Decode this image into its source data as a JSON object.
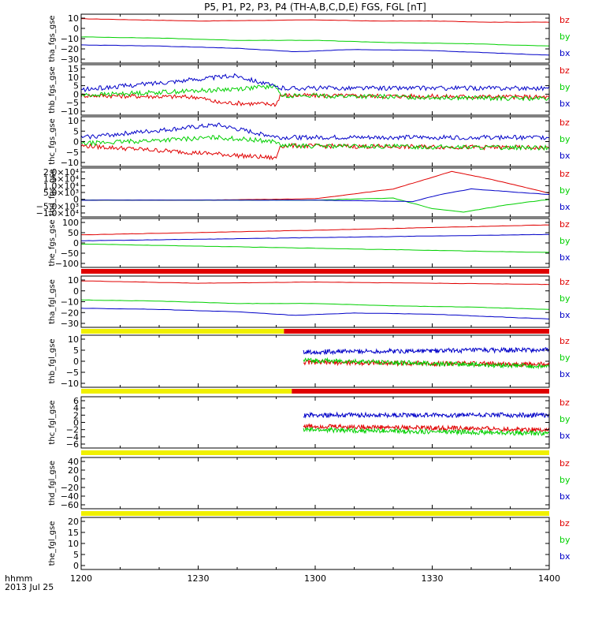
{
  "title": "P5, P1, P2, P3, P4 (TH-A,B,C,D,E) FGS, FGL [nT]",
  "time_axis": {
    "ticks": [
      "1200",
      "1230",
      "1300",
      "1330",
      "1400"
    ],
    "label_line1": "hhmm",
    "label_line2": "2013 Jul 25"
  },
  "legend": [
    "bz",
    "by",
    "bx"
  ],
  "colors": {
    "bz": "#e00000",
    "by": "#00d000",
    "bx": "#0000c8",
    "bar_yellow": "#f0f000",
    "bar_red": "#e00000"
  },
  "chart_data": [
    {
      "type": "line",
      "ylabel": "tha_fgs_gse",
      "x_range_hhmm": [
        "12:00",
        "14:00"
      ],
      "ylim": [
        -31,
        12
      ],
      "yticks": [
        "10",
        "0",
        "−10",
        "−20",
        "−30"
      ],
      "series": [
        {
          "name": "bz",
          "x": [
            0,
            30,
            60,
            75,
            90,
            105,
            120
          ],
          "values": [
            8,
            6,
            7,
            6,
            6,
            5,
            5
          ]
        },
        {
          "name": "by",
          "x": [
            0,
            20,
            40,
            60,
            80,
            100,
            120
          ],
          "values": [
            -8,
            -9,
            -11,
            -11,
            -13,
            -14,
            -16
          ]
        },
        {
          "name": "bx",
          "x": [
            0,
            20,
            40,
            55,
            70,
            90,
            120
          ],
          "values": [
            -15,
            -16,
            -18,
            -21,
            -19,
            -20,
            -24
          ]
        }
      ]
    },
    {
      "type": "line",
      "ylabel": "thb_fgs_gse",
      "ylim": [
        -12,
        16
      ],
      "yticks": [
        "15",
        "10",
        "5",
        "0",
        "−5",
        "−10"
      ],
      "series": [
        {
          "name": "bz",
          "x": [
            0,
            30,
            35,
            50,
            51,
            120
          ],
          "values": [
            -1,
            -2,
            -5,
            -6,
            -1,
            -2
          ]
        },
        {
          "name": "by",
          "x": [
            0,
            35,
            50,
            51,
            120
          ],
          "values": [
            -1,
            2,
            4,
            -1,
            -3
          ]
        },
        {
          "name": "bx",
          "x": [
            0,
            35,
            40,
            51,
            120
          ],
          "values": [
            2,
            9,
            10,
            3,
            3
          ]
        }
      ]
    },
    {
      "type": "line",
      "ylabel": "thc_fgs_gse",
      "ylim": [
        -12,
        12
      ],
      "yticks": [
        "10",
        "5",
        "0",
        "−5",
        "−10"
      ],
      "series": [
        {
          "name": "bz",
          "x": [
            0,
            35,
            50,
            51,
            120
          ],
          "values": [
            -2,
            -6,
            -8,
            -2,
            -3
          ]
        },
        {
          "name": "by",
          "x": [
            0,
            35,
            50,
            51,
            120
          ],
          "values": [
            -1,
            2,
            0,
            -2,
            -3
          ]
        },
        {
          "name": "bx",
          "x": [
            0,
            35,
            40,
            51,
            120
          ],
          "values": [
            2,
            8,
            6,
            2,
            2
          ]
        }
      ]
    },
    {
      "type": "line",
      "ylabel": "thd_fgs_gse",
      "ylim": [
        -12000,
        23000
      ],
      "yticks": [
        "2.0×10⁴",
        "1.5×10⁴",
        "1.0×10⁴",
        "5.0×10³",
        "0",
        "−5.0×10³",
        "−1.0×10⁴"
      ],
      "series": [
        {
          "name": "bz",
          "x": [
            0,
            30,
            60,
            80,
            95,
            105,
            120
          ],
          "values": [
            0,
            0,
            1000,
            8000,
            20500,
            15000,
            5000
          ]
        },
        {
          "name": "by",
          "x": [
            0,
            60,
            80,
            90,
            98,
            110,
            120
          ],
          "values": [
            0,
            0,
            1500,
            -6000,
            -8500,
            -3000,
            500
          ]
        },
        {
          "name": "bx",
          "x": [
            0,
            60,
            85,
            92,
            100,
            110,
            120
          ],
          "values": [
            0,
            0,
            -1000,
            4000,
            8000,
            6000,
            4000
          ]
        }
      ]
    },
    {
      "type": "line",
      "ylabel": "the_fgs_gse",
      "ylim": [
        -125,
        105
      ],
      "yticks": [
        "100",
        "50",
        "0",
        "−50",
        "−100"
      ],
      "series": [
        {
          "name": "bz",
          "x": [
            0,
            60,
            120
          ],
          "values": [
            28,
            50,
            75
          ]
        },
        {
          "name": "by",
          "x": [
            0,
            60,
            120
          ],
          "values": [
            -15,
            -35,
            -55
          ]
        },
        {
          "name": "bx",
          "x": [
            0,
            60,
            120
          ],
          "values": [
            0,
            15,
            30
          ]
        }
      ]
    },
    {
      "type": "line",
      "ylabel": "tha_fgl_gse",
      "ylim": [
        -31,
        12
      ],
      "yticks": [
        "10",
        "0",
        "−10",
        "−20",
        "−30"
      ],
      "series": [
        {
          "name": "bz",
          "x": [
            0,
            30,
            60,
            90,
            120
          ],
          "values": [
            8,
            6,
            7,
            6,
            5
          ]
        },
        {
          "name": "by",
          "x": [
            0,
            20,
            40,
            60,
            80,
            100,
            120
          ],
          "values": [
            -8,
            -9,
            -11,
            -11,
            -13,
            -14,
            -16
          ]
        },
        {
          "name": "bx",
          "x": [
            0,
            20,
            40,
            55,
            70,
            90,
            120
          ],
          "values": [
            -15,
            -16,
            -18,
            -21,
            -19,
            -20,
            -24
          ]
        }
      ]
    },
    {
      "type": "line",
      "ylabel": "thb_fgl_gse",
      "ylim": [
        -13,
        12
      ],
      "yticks": [
        "10",
        "5",
        "0",
        "−5",
        "−10"
      ],
      "data_start_min": 57,
      "series": [
        {
          "name": "bz",
          "x": [
            57,
            120
          ],
          "values": [
            -1,
            -2
          ]
        },
        {
          "name": "by",
          "x": [
            57,
            120
          ],
          "values": [
            0,
            -3
          ]
        },
        {
          "name": "bx",
          "x": [
            57,
            120
          ],
          "values": [
            4,
            5
          ]
        }
      ]
    },
    {
      "type": "line",
      "ylabel": "thc_fgl_gse",
      "ylim": [
        -7,
        7
      ],
      "yticks": [
        "6",
        "4",
        "2",
        "0",
        "−2",
        "−4",
        "−6"
      ],
      "data_start_min": 57,
      "series": [
        {
          "name": "bz",
          "x": [
            57,
            120
          ],
          "values": [
            -1,
            -2
          ]
        },
        {
          "name": "by",
          "x": [
            57,
            120
          ],
          "values": [
            -2,
            -3
          ]
        },
        {
          "name": "bx",
          "x": [
            57,
            120
          ],
          "values": [
            2,
            2
          ]
        }
      ]
    },
    {
      "type": "line",
      "ylabel": "thd_fgl_gse",
      "ylim": [
        -72,
        50
      ],
      "yticks": [
        "40",
        "20",
        "0",
        "−20",
        "−40",
        "−60"
      ],
      "series": []
    },
    {
      "type": "line",
      "ylabel": "the_fgl_gse",
      "ylim": [
        -1,
        23
      ],
      "yticks": [
        "20",
        "15",
        "10",
        "5",
        "0"
      ],
      "series": []
    }
  ],
  "bars": [
    {
      "after_panel": 5,
      "segments": [
        {
          "from": 0,
          "to": 120,
          "color": "red"
        }
      ]
    },
    {
      "after_panel": 6,
      "segments": [
        {
          "from": 0,
          "to": 52,
          "color": "yellow"
        },
        {
          "from": 52,
          "to": 120,
          "color": "red"
        }
      ]
    },
    {
      "after_panel": 7,
      "segments": [
        {
          "from": 0,
          "to": 54,
          "color": "yellow"
        },
        {
          "from": 54,
          "to": 120,
          "color": "red"
        }
      ]
    },
    {
      "after_panel": 8,
      "segments": [
        {
          "from": 0,
          "to": 120,
          "color": "yellow"
        }
      ]
    },
    {
      "after_panel": 9,
      "segments": [
        {
          "from": 0,
          "to": 120,
          "color": "yellow"
        }
      ]
    }
  ]
}
